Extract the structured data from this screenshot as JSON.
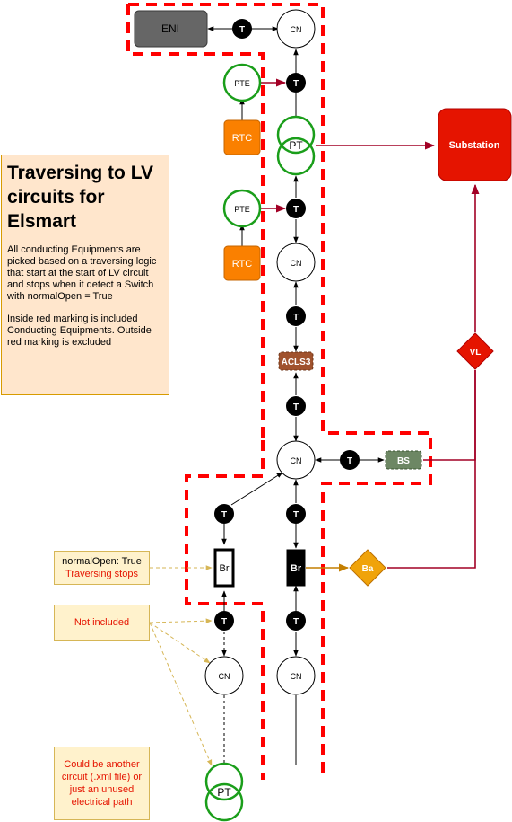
{
  "diagram": {
    "title": "Traversing to LV circuits for Elsmart",
    "description": "All conducting Equipments are picked based on a traversing logic that start at the start of LV circuit and stops when it detect a Switch with normalOpen = True",
    "marking_note": "Inside red marking is included Conducting Equipments. Outside red marking is excluded",
    "nodes": {
      "eni": "ENI",
      "terminal": "T",
      "cn": "CN",
      "pte": "PTE",
      "rtc": "RTC",
      "pt": "PT",
      "substation": "Substation",
      "acls": "ACLS3",
      "bs": "BS",
      "vl": "VL",
      "ba": "Ba",
      "br": "Br"
    },
    "notes": {
      "normal_open_line1": "normalOpen: True",
      "normal_open_line2": "Traversing stops",
      "not_included": "Not included",
      "another_circuit": "Could be another circuit (.xml file) or just an unused electrical path"
    },
    "colors": {
      "boundary": "#ff0000",
      "dark_red_edge": "#a20025",
      "substation_fill": "#e51400",
      "rtc_fill": "#fa8000",
      "ba_fill": "#f0a30a",
      "acls_fill": "#a0522d",
      "bs_fill": "#6d8764",
      "eni_fill": "#666666",
      "pt_ring": "#1a9e1a",
      "note_dash": "#d6b656"
    }
  }
}
